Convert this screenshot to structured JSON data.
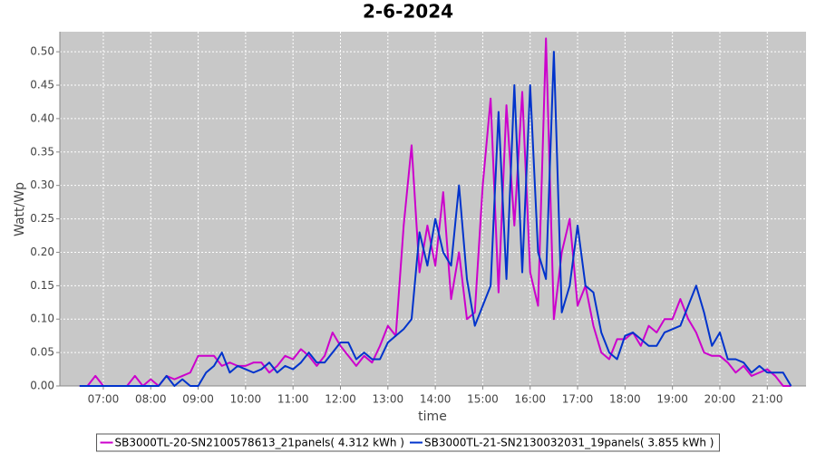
{
  "chart_data": {
    "type": "line",
    "title": "2-6-2024",
    "y_label": "Watt/Wp",
    "x_label": "time",
    "x": [
      390,
      400,
      410,
      420,
      430,
      440,
      450,
      460,
      470,
      480,
      490,
      500,
      510,
      520,
      530,
      540,
      550,
      560,
      570,
      580,
      590,
      600,
      610,
      620,
      630,
      640,
      650,
      660,
      670,
      680,
      690,
      700,
      710,
      720,
      730,
      740,
      750,
      760,
      770,
      780,
      790,
      800,
      810,
      820,
      830,
      840,
      850,
      860,
      870,
      880,
      890,
      900,
      910,
      920,
      930,
      940,
      950,
      960,
      970,
      980,
      990,
      1000,
      1010,
      1020,
      1030,
      1040,
      1050,
      1060,
      1070,
      1080,
      1090,
      1100,
      1110,
      1120,
      1130,
      1140,
      1150,
      1160,
      1170,
      1180,
      1190,
      1200,
      1210,
      1220,
      1230,
      1240,
      1250,
      1260,
      1270,
      1280,
      1290
    ],
    "series": [
      {
        "name": "SB3000TL-20-SN2100578613_21panels( 4.312 kWh )",
        "color": "#cc00cc",
        "values": [
          0,
          0,
          0.015,
          0,
          0,
          0,
          0,
          0.015,
          0,
          0.01,
          0,
          0.015,
          0.01,
          0.015,
          0.02,
          0.045,
          0.045,
          0.045,
          0.03,
          0.035,
          0.03,
          0.03,
          0.035,
          0.035,
          0.02,
          0.03,
          0.045,
          0.04,
          0.055,
          0.045,
          0.03,
          0.045,
          0.08,
          0.06,
          0.045,
          0.03,
          0.045,
          0.035,
          0.06,
          0.09,
          0.075,
          0.24,
          0.36,
          0.17,
          0.24,
          0.18,
          0.29,
          0.13,
          0.2,
          0.1,
          0.11,
          0.3,
          0.43,
          0.14,
          0.42,
          0.24,
          0.44,
          0.17,
          0.12,
          0.52,
          0.1,
          0.2,
          0.25,
          0.12,
          0.15,
          0.09,
          0.05,
          0.04,
          0.07,
          0.07,
          0.08,
          0.06,
          0.09,
          0.08,
          0.1,
          0.1,
          0.13,
          0.1,
          0.08,
          0.05,
          0.045,
          0.045,
          0.035,
          0.02,
          0.03,
          0.015,
          0.02,
          0.025,
          0.015,
          0,
          0
        ]
      },
      {
        "name": "SB3000TL-21-SN2130032031_19panels( 3.855 kWh )",
        "color": "#0033cc",
        "values": [
          0,
          0,
          0,
          0,
          0,
          0,
          0,
          0,
          0,
          0,
          0,
          0.015,
          0,
          0.01,
          0,
          0,
          0.02,
          0.03,
          0.05,
          0.02,
          0.03,
          0.025,
          0.02,
          0.025,
          0.035,
          0.02,
          0.03,
          0.025,
          0.035,
          0.05,
          0.035,
          0.035,
          0.05,
          0.065,
          0.065,
          0.04,
          0.05,
          0.04,
          0.04,
          0.065,
          0.075,
          0.085,
          0.1,
          0.23,
          0.18,
          0.25,
          0.2,
          0.18,
          0.3,
          0.16,
          0.09,
          0.12,
          0.15,
          0.41,
          0.16,
          0.45,
          0.17,
          0.45,
          0.2,
          0.16,
          0.5,
          0.11,
          0.15,
          0.24,
          0.15,
          0.14,
          0.08,
          0.05,
          0.04,
          0.075,
          0.08,
          0.07,
          0.06,
          0.06,
          0.08,
          0.085,
          0.09,
          0.12,
          0.15,
          0.11,
          0.06,
          0.08,
          0.04,
          0.04,
          0.035,
          0.02,
          0.03,
          0.02,
          0.02,
          0.02,
          0
        ]
      }
    ],
    "xlim": [
      365,
      1309
    ],
    "ylim": [
      0,
      0.53
    ],
    "xticks": [
      {
        "value": 420,
        "label": "07:00"
      },
      {
        "value": 480,
        "label": "08:00"
      },
      {
        "value": 540,
        "label": "09:00"
      },
      {
        "value": 600,
        "label": "10:00"
      },
      {
        "value": 660,
        "label": "11:00"
      },
      {
        "value": 720,
        "label": "12:00"
      },
      {
        "value": 780,
        "label": "13:00"
      },
      {
        "value": 840,
        "label": "14:00"
      },
      {
        "value": 900,
        "label": "15:00"
      },
      {
        "value": 960,
        "label": "16:00"
      },
      {
        "value": 1020,
        "label": "17:00"
      },
      {
        "value": 1080,
        "label": "18:00"
      },
      {
        "value": 1140,
        "label": "19:00"
      },
      {
        "value": 1200,
        "label": "20:00"
      },
      {
        "value": 1260,
        "label": "21:00"
      }
    ],
    "yticks": [
      {
        "value": 0,
        "label": "0.00"
      },
      {
        "value": 0.05,
        "label": "0.05"
      },
      {
        "value": 0.1,
        "label": "0.10"
      },
      {
        "value": 0.15,
        "label": "0.15"
      },
      {
        "value": 0.2,
        "label": "0.20"
      },
      {
        "value": 0.25,
        "label": "0.25"
      },
      {
        "value": 0.3,
        "label": "0.30"
      },
      {
        "value": 0.35,
        "label": "0.35"
      },
      {
        "value": 0.4,
        "label": "0.40"
      },
      {
        "value": 0.45,
        "label": "0.45"
      },
      {
        "value": 0.5,
        "label": "0.50"
      }
    ],
    "grid": true
  }
}
